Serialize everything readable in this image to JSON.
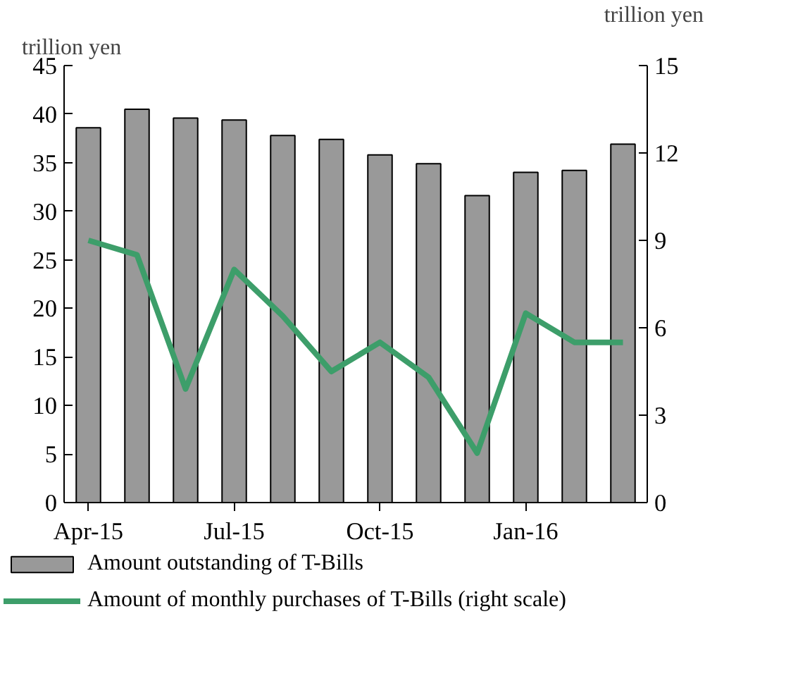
{
  "chart_data": {
    "type": "bar",
    "ylabel": "trillion yen",
    "y2label": "trillion yen",
    "categories": [
      "Apr-15",
      null,
      null,
      "Jul-15",
      null,
      null,
      "Oct-15",
      null,
      null,
      "Jan-16",
      null,
      null
    ],
    "series": [
      {
        "name": "Amount outstanding of T-Bills",
        "color": "#999999",
        "values": [
          38.6,
          40.5,
          39.6,
          39.4,
          37.8,
          37.4,
          35.8,
          34.9,
          31.6,
          34.0,
          34.2,
          36.9
        ]
      },
      {
        "name": "Amount of monthly purchases of T-Bills (right scale)",
        "type": "line",
        "axis": "y2",
        "color": "#3d9e6a",
        "values": [
          9.0,
          8.5,
          3.9,
          8.0,
          6.4,
          4.5,
          5.5,
          4.3,
          1.7,
          6.5,
          5.5,
          5.5
        ]
      }
    ],
    "ylim": [
      0,
      45
    ],
    "yticks": [
      0,
      5,
      10,
      15,
      20,
      25,
      30,
      35,
      40,
      45
    ],
    "y2lim": [
      0,
      15
    ],
    "y2ticks": [
      0,
      3,
      6,
      9,
      12,
      15
    ],
    "grid": false,
    "legend": "bottom",
    "marker": "none",
    "line_style": "solid"
  }
}
